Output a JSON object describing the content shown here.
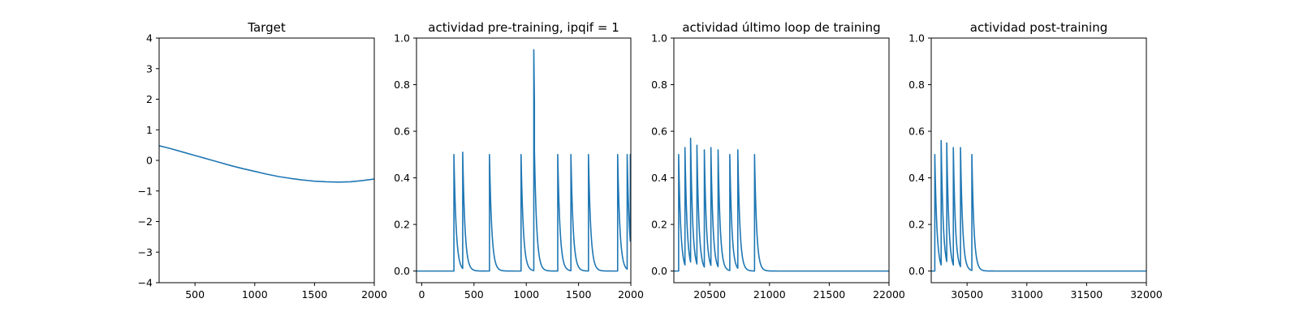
{
  "chart_data": [
    {
      "type": "line",
      "title": "Target",
      "xlabel": "",
      "ylabel": "",
      "xlim": [
        200,
        2000
      ],
      "ylim": [
        -4,
        4
      ],
      "xticks": [
        500,
        1000,
        1500,
        2000
      ],
      "yticks": [
        -4,
        -3,
        -2,
        -1,
        0,
        1,
        2,
        3,
        4
      ],
      "xtick_labels": [
        "500",
        "1000",
        "1500",
        "2000"
      ],
      "ytick_labels": [
        "−4",
        "−3",
        "−2",
        "−1",
        "0",
        "1",
        "2",
        "3",
        "4"
      ],
      "grid": false,
      "series": [
        {
          "color": "#1f77b4",
          "points": [
            [
              200,
              0.48
            ],
            [
              300,
              0.38
            ],
            [
              400,
              0.27
            ],
            [
              500,
              0.16
            ],
            [
              600,
              0.05
            ],
            [
              700,
              -0.06
            ],
            [
              800,
              -0.17
            ],
            [
              900,
              -0.27
            ],
            [
              1000,
              -0.36
            ],
            [
              1100,
              -0.45
            ],
            [
              1200,
              -0.53
            ],
            [
              1300,
              -0.59
            ],
            [
              1400,
              -0.64
            ],
            [
              1500,
              -0.68
            ],
            [
              1600,
              -0.7
            ],
            [
              1700,
              -0.71
            ],
            [
              1800,
              -0.7
            ],
            [
              1900,
              -0.66
            ],
            [
              2000,
              -0.61
            ]
          ]
        }
      ]
    },
    {
      "type": "line",
      "title": "actividad pre-training, ipqif = 1",
      "xlabel": "",
      "ylabel": "",
      "xlim": [
        -50,
        2000
      ],
      "ylim": [
        -0.05,
        1.0
      ],
      "xticks": [
        0,
        500,
        1000,
        1500,
        2000
      ],
      "yticks": [
        0.0,
        0.2,
        0.4,
        0.6,
        0.8,
        1.0
      ],
      "xtick_labels": [
        "0",
        "500",
        "1000",
        "1500",
        "2000"
      ],
      "ytick_labels": [
        "0.0",
        "0.2",
        "0.4",
        "0.6",
        "0.8",
        "1.0"
      ],
      "grid": false,
      "spikes": {
        "color": "#1f77b4",
        "baseline": 0,
        "tau": 22,
        "events": [
          [
            308,
            0.5
          ],
          [
            392,
            0.51
          ],
          [
            648,
            0.5
          ],
          [
            950,
            0.5
          ],
          [
            1072,
            0.95
          ],
          [
            1078,
            0.52
          ],
          [
            1301,
            0.5
          ],
          [
            1427,
            0.5
          ],
          [
            1595,
            0.5
          ],
          [
            1874,
            0.5
          ],
          [
            1965,
            0.5
          ],
          [
            1995,
            0.5
          ]
        ]
      }
    },
    {
      "type": "line",
      "title": "actividad último loop de training",
      "xlabel": "",
      "ylabel": "",
      "xlim": [
        20200,
        22000
      ],
      "ylim": [
        -0.05,
        1.0
      ],
      "xticks": [
        20500,
        21000,
        21500,
        22000
      ],
      "yticks": [
        0.0,
        0.2,
        0.4,
        0.6,
        0.8,
        1.0
      ],
      "xtick_labels": [
        "20500",
        "21000",
        "21500",
        "22000"
      ],
      "ytick_labels": [
        "0.0",
        "0.2",
        "0.4",
        "0.6",
        "0.8",
        "1.0"
      ],
      "grid": false,
      "spikes": {
        "color": "#1f77b4",
        "baseline": 0,
        "tau": 18,
        "events": [
          [
            20240,
            0.5
          ],
          [
            20293,
            0.53
          ],
          [
            20340,
            0.57
          ],
          [
            20393,
            0.54
          ],
          [
            20455,
            0.52
          ],
          [
            20510,
            0.53
          ],
          [
            20570,
            0.52
          ],
          [
            20668,
            0.5
          ],
          [
            20735,
            0.52
          ],
          [
            20875,
            0.5
          ]
        ]
      }
    },
    {
      "type": "line",
      "title": "actividad post-training",
      "xlabel": "",
      "ylabel": "",
      "xlim": [
        30200,
        32000
      ],
      "ylim": [
        -0.05,
        1.0
      ],
      "xticks": [
        30500,
        31000,
        31500,
        32000
      ],
      "yticks": [
        0.0,
        0.2,
        0.4,
        0.6,
        0.8,
        1.0
      ],
      "xtick_labels": [
        "30500",
        "31000",
        "31500",
        "32000"
      ],
      "ytick_labels": [
        "0.0",
        "0.2",
        "0.4",
        "0.6",
        "0.8",
        "1.0"
      ],
      "grid": false,
      "spikes": {
        "color": "#1f77b4",
        "baseline": 0,
        "tau": 18,
        "events": [
          [
            30230,
            0.5
          ],
          [
            30283,
            0.56
          ],
          [
            30330,
            0.55
          ],
          [
            30385,
            0.53
          ],
          [
            30445,
            0.53
          ],
          [
            30540,
            0.5
          ]
        ]
      }
    }
  ]
}
